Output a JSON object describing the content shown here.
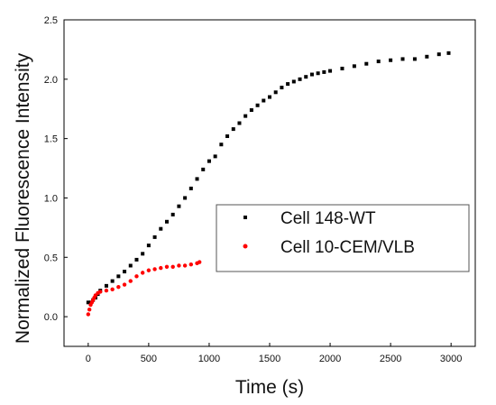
{
  "chart_data": {
    "type": "scatter",
    "title": "",
    "xlabel": "Time (s)",
    "ylabel": "Normalized Fluorescence Intensity",
    "xlim": [
      -200,
      3200
    ],
    "ylim": [
      -0.25,
      2.5
    ],
    "x_ticks": [
      "0",
      "500",
      "1000",
      "1500",
      "2000",
      "2500",
      "3000"
    ],
    "y_ticks": [
      "0.0",
      "0.5",
      "1.0",
      "1.5",
      "2.0",
      "2.5"
    ],
    "grid": false,
    "legend_position": "center-right",
    "series": [
      {
        "name": "Cell 148-WT",
        "color": "#000000",
        "x": [
          0,
          20,
          40,
          60,
          80,
          100,
          150,
          200,
          250,
          300,
          350,
          400,
          450,
          500,
          550,
          600,
          650,
          700,
          750,
          800,
          850,
          900,
          950,
          1000,
          1050,
          1100,
          1150,
          1200,
          1250,
          1300,
          1350,
          1400,
          1450,
          1500,
          1550,
          1600,
          1650,
          1700,
          1750,
          1800,
          1850,
          1900,
          1950,
          2000,
          2100,
          2200,
          2300,
          2400,
          2500,
          2600,
          2700,
          2800,
          2900,
          2980
        ],
        "y": [
          0.12,
          0.12,
          0.14,
          0.16,
          0.19,
          0.22,
          0.26,
          0.3,
          0.34,
          0.38,
          0.43,
          0.48,
          0.53,
          0.6,
          0.67,
          0.74,
          0.8,
          0.86,
          0.93,
          1.0,
          1.08,
          1.16,
          1.24,
          1.31,
          1.35,
          1.45,
          1.52,
          1.58,
          1.63,
          1.69,
          1.74,
          1.78,
          1.82,
          1.85,
          1.89,
          1.93,
          1.96,
          1.98,
          2.0,
          2.02,
          2.04,
          2.05,
          2.06,
          2.07,
          2.09,
          2.11,
          2.13,
          2.15,
          2.16,
          2.17,
          2.17,
          2.19,
          2.21,
          2.22
        ]
      },
      {
        "name": "Cell 10-CEM/VLB",
        "color": "#ff0000",
        "x": [
          0,
          10,
          20,
          30,
          40,
          50,
          60,
          80,
          100,
          150,
          200,
          250,
          300,
          350,
          400,
          450,
          500,
          550,
          600,
          650,
          700,
          750,
          800,
          850,
          900,
          920
        ],
        "y": [
          0.02,
          0.06,
          0.1,
          0.12,
          0.14,
          0.16,
          0.18,
          0.2,
          0.21,
          0.22,
          0.23,
          0.25,
          0.27,
          0.3,
          0.34,
          0.37,
          0.39,
          0.4,
          0.41,
          0.42,
          0.42,
          0.43,
          0.43,
          0.44,
          0.45,
          0.46
        ]
      }
    ]
  }
}
